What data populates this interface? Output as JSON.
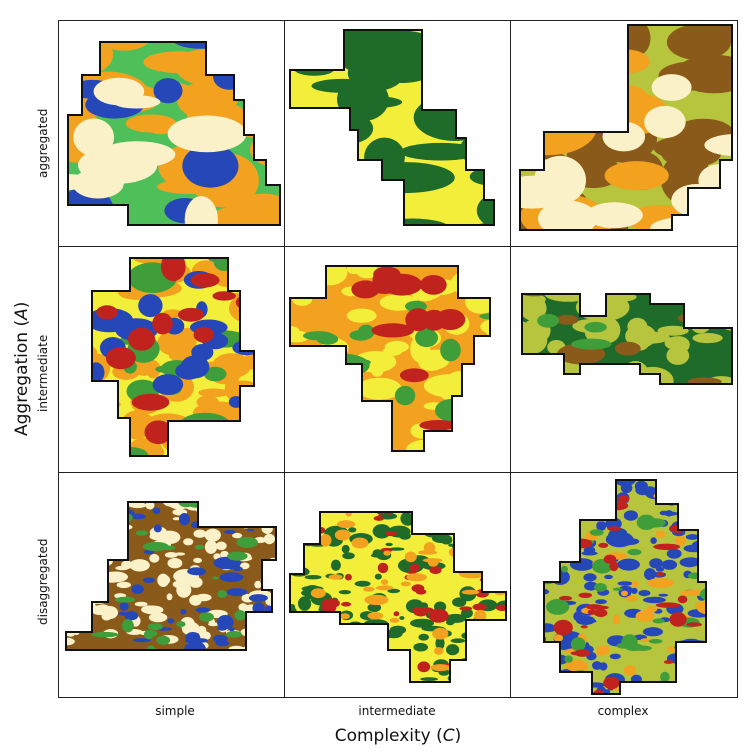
{
  "axes": {
    "y_title": "Aggregation",
    "y_symbol": "A",
    "x_title": "Complexity",
    "x_symbol": "C"
  },
  "rows": [
    "aggregated",
    "intermediate",
    "disaggregated"
  ],
  "columns": [
    "simple",
    "intermediate",
    "complex"
  ],
  "palette": {
    "green_light": "#4fbf5a",
    "green_dark": "#1f6b2a",
    "green_mid": "#3f9e3a",
    "yellow": "#f2ee3a",
    "yellow_green": "#b6c43e",
    "orange": "#f2a21e",
    "brown": "#8a5a1a",
    "cream": "#fbf1c8",
    "blue": "#2647b8",
    "red": "#c0231d",
    "outline": "#111111"
  },
  "panels": [
    {
      "row": "aggregated",
      "column": "simple",
      "base": "green_light",
      "patches": [
        "orange",
        "blue",
        "cream"
      ]
    },
    {
      "row": "aggregated",
      "column": "intermediate",
      "base": "yellow",
      "patches": [
        "green_dark",
        "green_dark"
      ]
    },
    {
      "row": "aggregated",
      "column": "complex",
      "base": "yellow_green",
      "patches": [
        "brown",
        "orange",
        "cream"
      ]
    },
    {
      "row": "intermediate",
      "column": "simple",
      "base": "yellow",
      "patches": [
        "orange",
        "green_mid",
        "blue",
        "red"
      ]
    },
    {
      "row": "intermediate",
      "column": "intermediate",
      "base": "orange",
      "patches": [
        "yellow",
        "green_mid",
        "red"
      ]
    },
    {
      "row": "intermediate",
      "column": "complex",
      "base": "green_dark",
      "patches": [
        "yellow_green",
        "brown",
        "green_mid"
      ]
    },
    {
      "row": "disaggregated",
      "column": "simple",
      "base": "brown",
      "patches": [
        "cream",
        "blue",
        "green_mid"
      ]
    },
    {
      "row": "disaggregated",
      "column": "intermediate",
      "base": "yellow",
      "patches": [
        "green_dark",
        "red",
        "orange"
      ]
    },
    {
      "row": "disaggregated",
      "column": "complex",
      "base": "yellow_green",
      "patches": [
        "blue",
        "orange",
        "green_mid",
        "red"
      ]
    }
  ]
}
